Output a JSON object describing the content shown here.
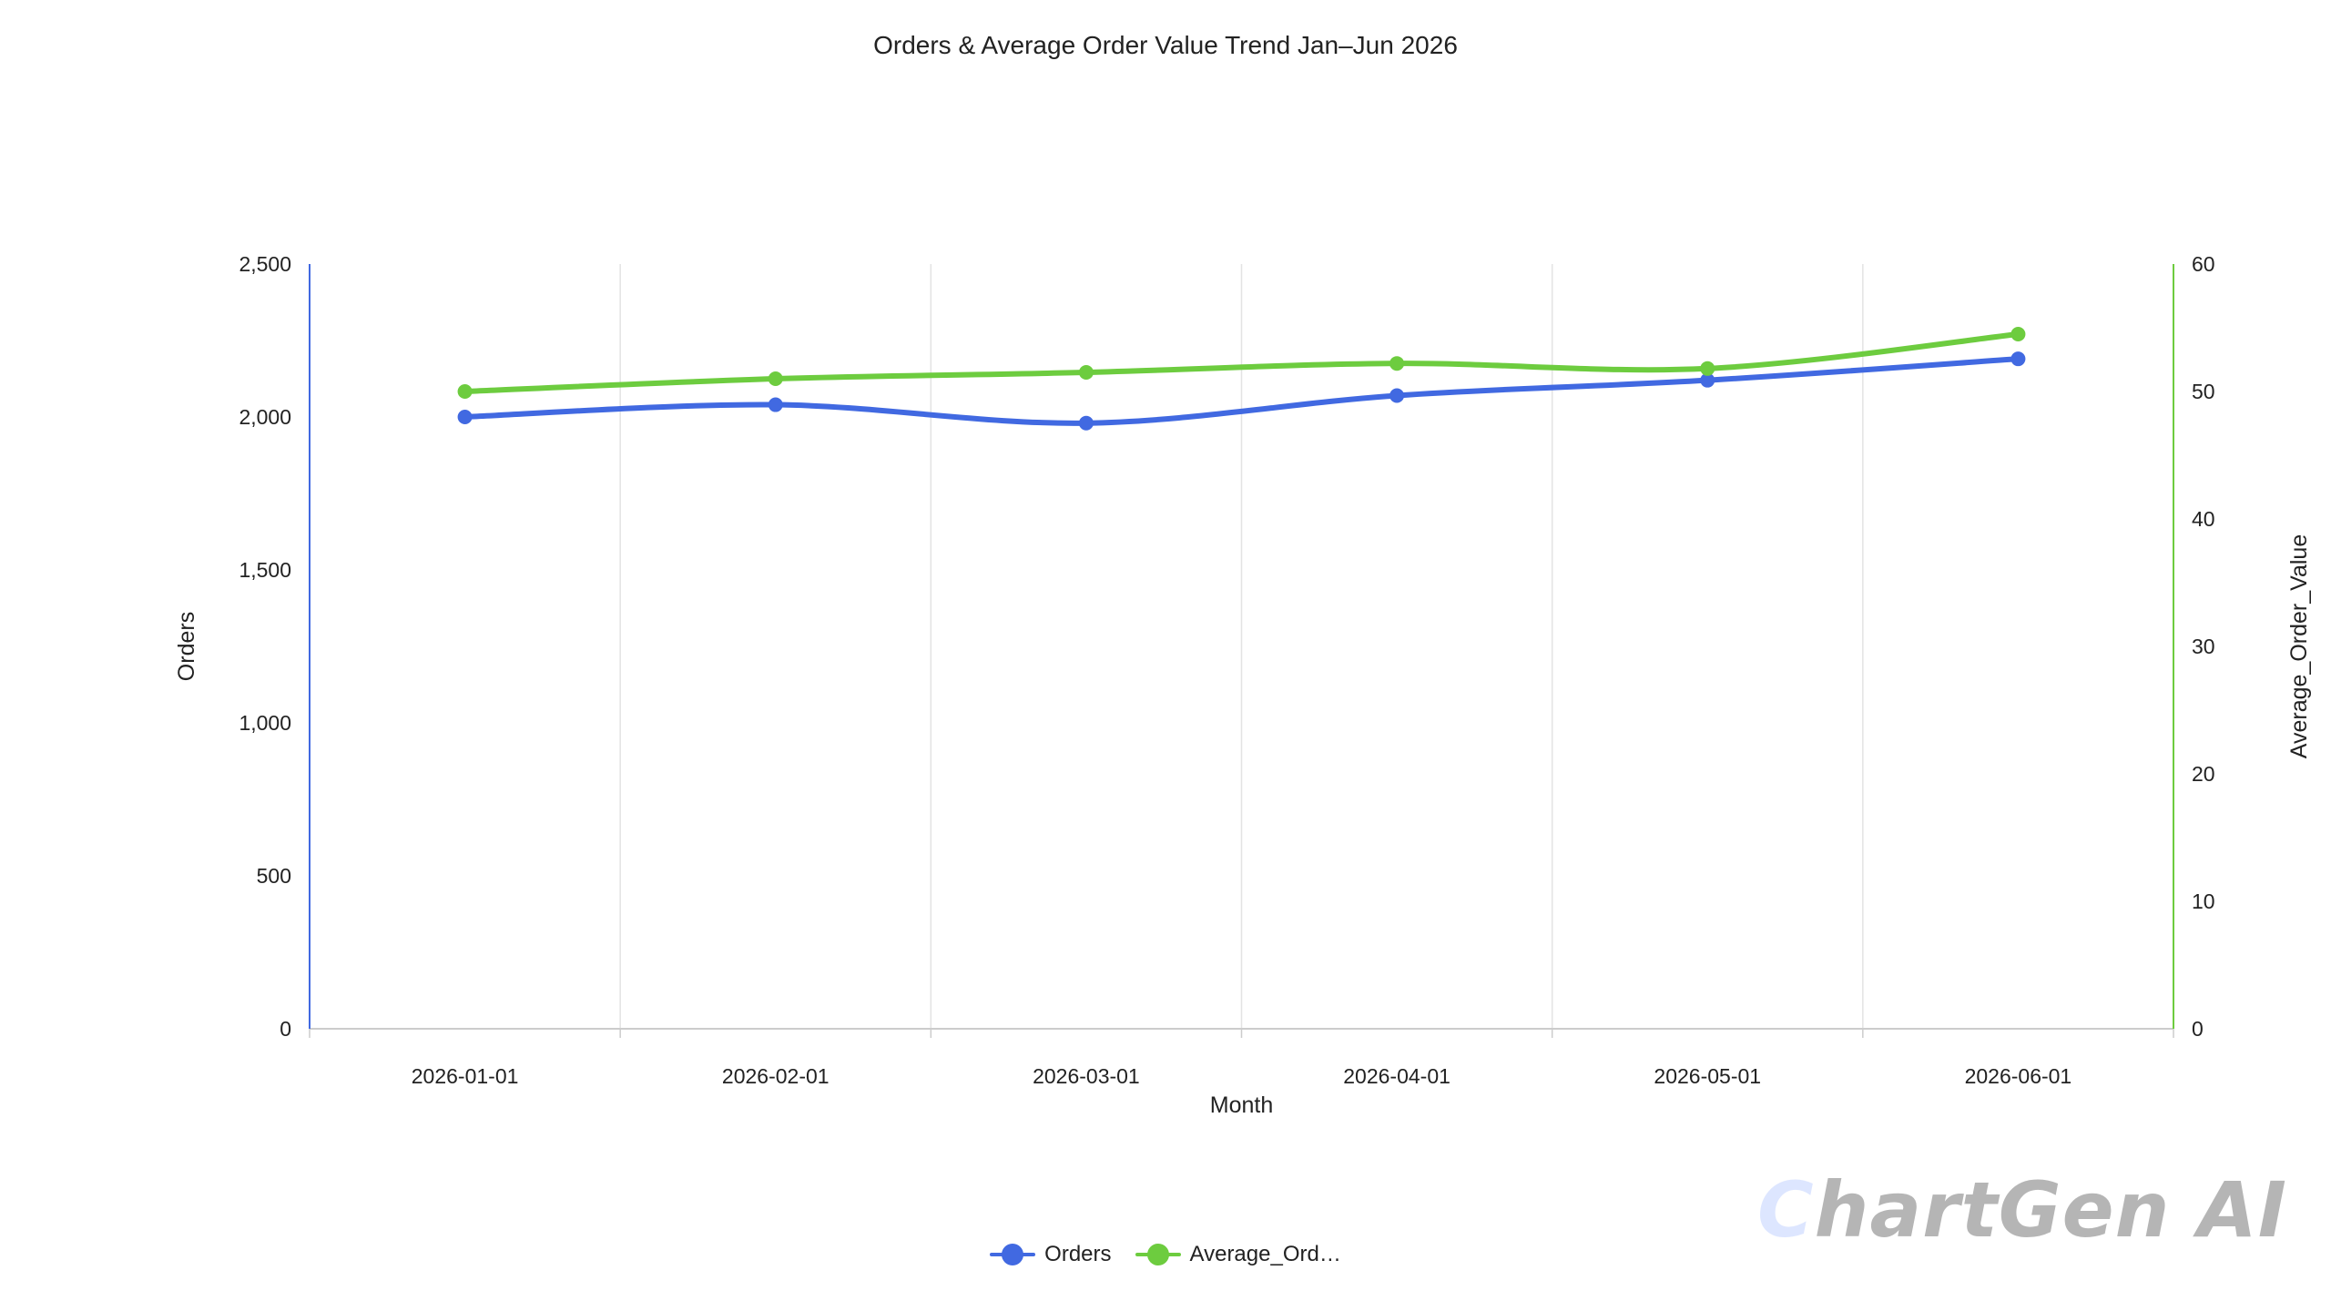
{
  "watermark": {
    "first_letter": "C",
    "rest": "hartGen AI"
  },
  "chart_data": {
    "type": "line",
    "title": "Orders & Average Order Value Trend Jan–Jun 2026",
    "xlabel": "Month",
    "ylabel": "Orders",
    "y2label": "Average_Order_Value",
    "categories": [
      "2026-01-01",
      "2026-02-01",
      "2026-03-01",
      "2026-04-01",
      "2026-05-01",
      "2026-06-01"
    ],
    "ylim": [
      0,
      2500
    ],
    "y2lim": [
      0,
      60
    ],
    "yticks": [
      "0",
      "500",
      "1,000",
      "1,500",
      "2,000",
      "2,500"
    ],
    "y2ticks": [
      "0",
      "10",
      "20",
      "30",
      "40",
      "50",
      "60"
    ],
    "grid": "vertical",
    "legend_position": "bottom-center",
    "series": [
      {
        "name": "Orders",
        "legend_label": "Orders",
        "axis": "left",
        "color": "#4169e1",
        "values": [
          2000,
          2040,
          1980,
          2070,
          2120,
          2190
        ]
      },
      {
        "name": "Average_Order_Value",
        "legend_label": "Average_Ord…",
        "axis": "right",
        "color": "#6dcc3f",
        "values": [
          50.0,
          51.0,
          51.5,
          52.2,
          51.8,
          54.5
        ]
      }
    ]
  }
}
